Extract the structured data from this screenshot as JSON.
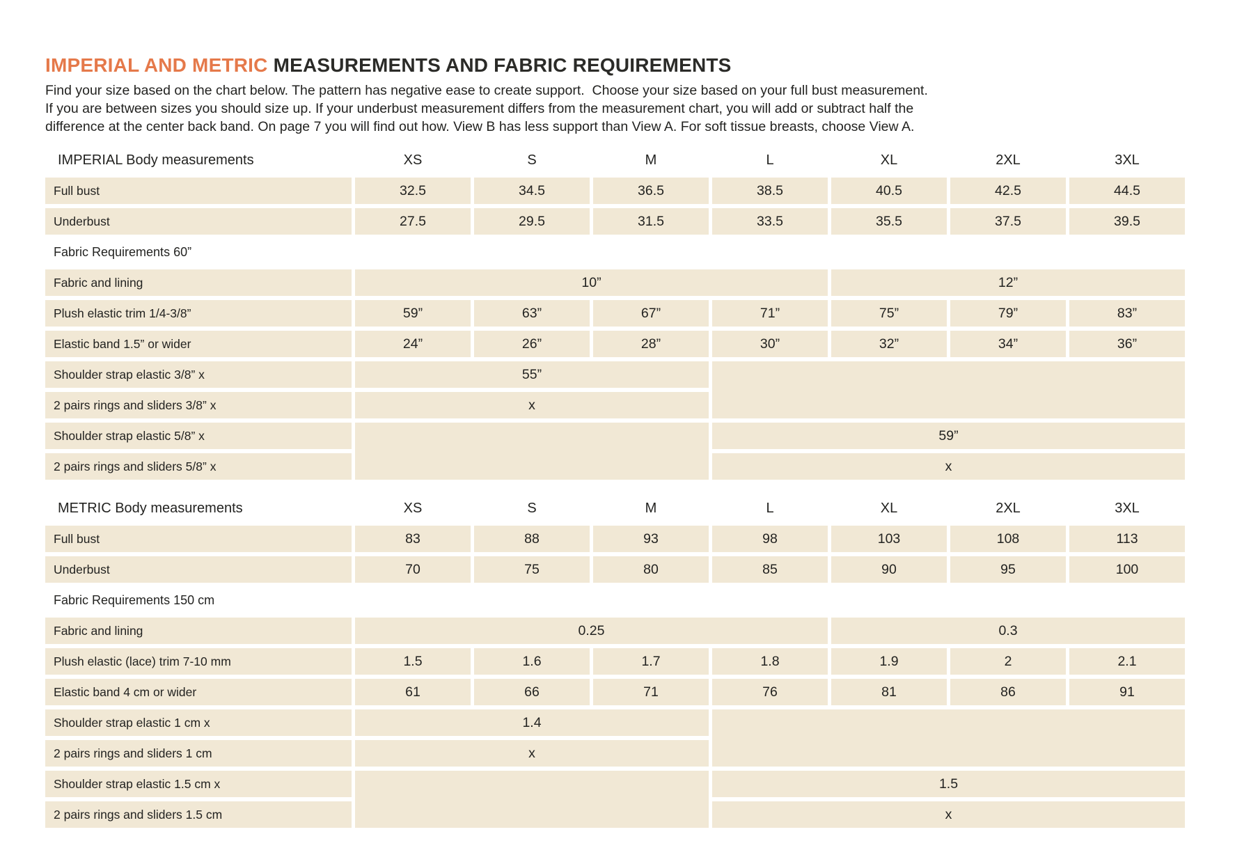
{
  "colors": {
    "accent_orange": "#e5794a",
    "cell_beige": "#f1e8d5",
    "text": "#232321"
  },
  "header": {
    "title_accent": "IMPERIAL AND METRIC",
    "title_rest": " MEASUREMENTS AND FABRIC REQUIREMENTS",
    "intro_lines": [
      "Find your size based on the chart below. The pattern has negative ease to create support.  Choose your size based on your full bust measurement.",
      "If you are between sizes you should size up. If your underbust measurement differs from the measurement chart, you will add or subtract half the",
      "difference at the center back band. On page 7 you will find out how. View B has less support than View A. For soft tissue breasts, choose View A."
    ]
  },
  "sizes": [
    "XS",
    "S",
    "M",
    "L",
    "XL",
    "2XL",
    "3XL"
  ],
  "tables": [
    {
      "name": "imperial",
      "header": "IMPERIAL Body measurements",
      "rows": [
        {
          "label": "Full bust",
          "cells": [
            {
              "t": "32.5"
            },
            {
              "t": "34.5"
            },
            {
              "t": "36.5"
            },
            {
              "t": "38.5"
            },
            {
              "t": "40.5"
            },
            {
              "t": "42.5"
            },
            {
              "t": "44.5"
            }
          ]
        },
        {
          "label": "Underbust",
          "cells": [
            {
              "t": "27.5"
            },
            {
              "t": "29.5"
            },
            {
              "t": "31.5"
            },
            {
              "t": "33.5"
            },
            {
              "t": "35.5"
            },
            {
              "t": "37.5"
            },
            {
              "t": "39.5"
            }
          ]
        },
        {
          "section": "Fabric Requirements 60”"
        },
        {
          "label": "Fabric and lining",
          "cells": [
            {
              "t": "10”",
              "span": 4
            },
            {
              "t": "12”",
              "span": 3
            }
          ]
        },
        {
          "label": "Plush elastic trim 1/4-3/8”",
          "cells": [
            {
              "t": "59”"
            },
            {
              "t": "63”"
            },
            {
              "t": "67”"
            },
            {
              "t": "71”"
            },
            {
              "t": "75”"
            },
            {
              "t": "79”"
            },
            {
              "t": "83”"
            }
          ]
        },
        {
          "label": "Elastic band 1.5” or wider",
          "cells": [
            {
              "t": "24”"
            },
            {
              "t": "26”"
            },
            {
              "t": "28”"
            },
            {
              "t": "30”"
            },
            {
              "t": "32”"
            },
            {
              "t": "34”"
            },
            {
              "t": "36”"
            }
          ]
        },
        {
          "label": "Shoulder strap elastic 3/8” x",
          "cells": [
            {
              "t": "55”",
              "span": 3
            },
            {
              "t": "",
              "span": 4,
              "rs": 2
            }
          ]
        },
        {
          "label": "2 pairs rings and sliders 3/8” x",
          "cells": [
            {
              "t": "x",
              "span": 3
            }
          ]
        },
        {
          "label": "Shoulder strap elastic 5/8” x",
          "cells": [
            {
              "t": "",
              "span": 3,
              "rs": 2
            },
            {
              "t": "59”",
              "span": 4
            }
          ]
        },
        {
          "label": "2 pairs rings and sliders 5/8” x",
          "cells": [
            {
              "t": "x",
              "span": 4
            }
          ]
        }
      ]
    },
    {
      "name": "metric",
      "header": "METRIC Body measurements",
      "rows": [
        {
          "label": "Full bust",
          "cells": [
            {
              "t": "83"
            },
            {
              "t": "88"
            },
            {
              "t": "93"
            },
            {
              "t": "98"
            },
            {
              "t": "103"
            },
            {
              "t": "108"
            },
            {
              "t": "113"
            }
          ]
        },
        {
          "label": "Underbust",
          "cells": [
            {
              "t": "70"
            },
            {
              "t": "75"
            },
            {
              "t": "80"
            },
            {
              "t": "85"
            },
            {
              "t": "90"
            },
            {
              "t": "95"
            },
            {
              "t": "100"
            }
          ]
        },
        {
          "section": "Fabric Requirements 150 cm"
        },
        {
          "label": "Fabric and lining",
          "cells": [
            {
              "t": "0.25",
              "span": 4
            },
            {
              "t": "0.3",
              "span": 3
            }
          ]
        },
        {
          "label": "Plush elastic (lace) trim 7-10 mm",
          "cells": [
            {
              "t": "1.5"
            },
            {
              "t": "1.6"
            },
            {
              "t": "1.7"
            },
            {
              "t": "1.8"
            },
            {
              "t": "1.9"
            },
            {
              "t": "2"
            },
            {
              "t": "2.1"
            }
          ]
        },
        {
          "label": "Elastic band 4 cm or wider",
          "cells": [
            {
              "t": "61"
            },
            {
              "t": "66"
            },
            {
              "t": "71"
            },
            {
              "t": "76"
            },
            {
              "t": "81"
            },
            {
              "t": "86"
            },
            {
              "t": "91"
            }
          ]
        },
        {
          "label": "Shoulder strap elastic 1 cm x",
          "cells": [
            {
              "t": "1.4",
              "span": 3
            },
            {
              "t": "",
              "span": 4,
              "rs": 2
            }
          ]
        },
        {
          "label": "2 pairs rings and sliders 1 cm",
          "cells": [
            {
              "t": "x",
              "span": 3
            }
          ]
        },
        {
          "label": "Shoulder strap elastic 1.5 cm x",
          "cells": [
            {
              "t": "",
              "span": 3,
              "rs": 2
            },
            {
              "t": "1.5",
              "span": 4
            }
          ]
        },
        {
          "label": "2 pairs rings and sliders 1.5 cm",
          "cells": [
            {
              "t": "x",
              "span": 4
            }
          ]
        }
      ]
    }
  ]
}
